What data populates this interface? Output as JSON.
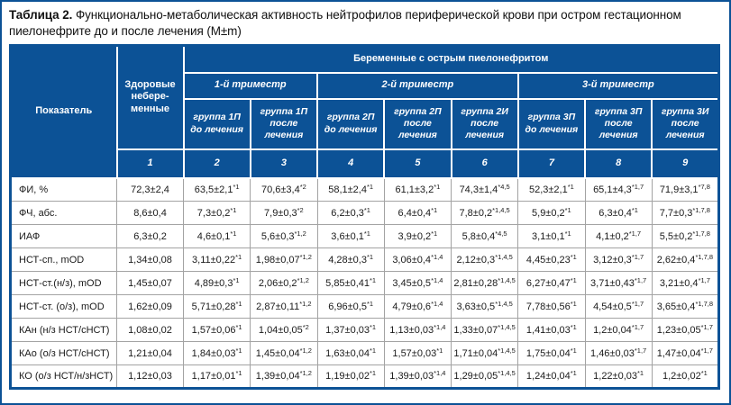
{
  "colors": {
    "header_blue": "#0c5296",
    "page_border": "#0c5296",
    "grid_gray": "#a3a3a3"
  },
  "title": {
    "label": "Таблица 2.",
    "text": "Функционально-метаболическая активность нейтрофилов периферической крови при остром гестационном пиелонефрите до и после лечения (М±m)"
  },
  "table": {
    "corner_header": "Показатель",
    "healthy_header": "Здоровые небере- менные",
    "pregnant_header": "Беременные с острым пиелонефритом",
    "trimesters": [
      {
        "label": "1-й триместр"
      },
      {
        "label": "2-й триместр"
      },
      {
        "label": "3-й триместр"
      }
    ],
    "groups": [
      "группа 1П до лечения",
      "группа 1П после лечения",
      "группа 2П до лечения",
      "группа 2П после лечения",
      "группа 2И после лечения",
      "группа 3П до лечения",
      "группа 3П после лечения",
      "группа 3И после лечения"
    ],
    "column_numbers": [
      "1",
      "2",
      "3",
      "4",
      "5",
      "6",
      "7",
      "8",
      "9"
    ],
    "rows": [
      {
        "label": "ФИ, %",
        "cells": [
          "72,3±2,4",
          "63,5±2,1*1",
          "70,6±3,4*2",
          "58,1±2,4*1",
          "61,1±3,2*1",
          "74,3±1,4*4,5",
          "52,3±2,1*1",
          "65,1±4,3*1,7",
          "71,9±3,1*7,8"
        ]
      },
      {
        "label": "ФЧ, абс.",
        "cells": [
          "8,6±0,4",
          "7,3±0,2*1",
          "7,9±0,3*2",
          "6,2±0,3*1",
          "6,4±0,4*1",
          "7,8±0,2*1,4,5",
          "5,9±0,2*1",
          "6,3±0,4*1",
          "7,7±0,3*1,7,8"
        ]
      },
      {
        "label": "ИАФ",
        "cells": [
          "6,3±0,2",
          "4,6±0,1*1",
          "5,6±0,3*1,2",
          "3,6±0,1*1",
          "3,9±0,2*1",
          "5,8±0,4*4,5",
          "3,1±0,1*1",
          "4,1±0,2*1,7",
          "5,5±0,2*1,7,8"
        ]
      },
      {
        "label": "НСТ-сп., mOD",
        "cells": [
          "1,34±0,08",
          "3,11±0,22*1",
          "1,98±0,07*1,2",
          "4,28±0,3*1",
          "3,06±0,4*1,4",
          "2,12±0,3*1,4,5",
          "4,45±0,23*1",
          "3,12±0,3*1,7",
          "2,62±0,4*1,7,8"
        ]
      },
      {
        "label": "НСТ-ст.(н/з), mOD",
        "cells": [
          "1,45±0,07",
          "4,89±0,3*1",
          "2,06±0,2*1,2",
          "5,85±0,41*1",
          "3,45±0,5*1,4",
          "2,81±0,28*1,4,5",
          "6,27±0,47*1",
          "3,71±0,43*1,7",
          "3,21±0,4*1,7"
        ]
      },
      {
        "label": "НСТ-ст. (о/з), mOD",
        "cells": [
          "1,62±0,09",
          "5,71±0,28*1",
          "2,87±0,11*1,2",
          "6,96±0,5*1",
          "4,79±0,6*1,4",
          "3,63±0,5*1,4,5",
          "7,78±0,56*1",
          "4,54±0,5*1,7",
          "3,65±0,4*1,7,8"
        ]
      },
      {
        "label": "КАн (н/з НСТ/сНСТ)",
        "cells": [
          "1,08±0,02",
          "1,57±0,06*1",
          "1,04±0,05*2",
          "1,37±0,03*1",
          "1,13±0,03*1,4",
          "1,33±0,07*1,4,5",
          "1,41±0,03*1",
          "1,2±0,04*1,7",
          "1,23±0,05*1,7"
        ]
      },
      {
        "label": "КАо (о/з НСТ/сНСТ)",
        "cells": [
          "1,21±0,04",
          "1,84±0,03*1",
          "1,45±0,04*1,2",
          "1,63±0,04*1",
          "1,57±0,03*1",
          "1,71±0,04*1,4,5",
          "1,75±0,04*1",
          "1,46±0,03*1,7",
          "1,47±0,04*1,7"
        ]
      },
      {
        "label": "КО (о/з НСТ/н/зНСТ)",
        "cells": [
          "1,12±0,03",
          "1,17±0,01*1",
          "1,39±0,04*1,2",
          "1,19±0,02*1",
          "1,39±0,03*1,4",
          "1,29±0,05*1,4,5",
          "1,24±0,04*1",
          "1,22±0,03*1",
          "1,2±0,02*1"
        ]
      }
    ]
  }
}
